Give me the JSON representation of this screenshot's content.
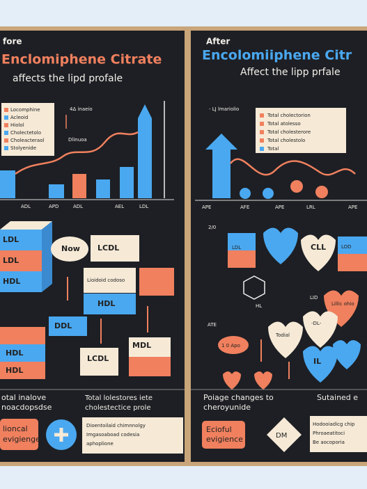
{
  "left": {
    "heading": "fore",
    "title": "Enclomiphene Citrate",
    "subtitle": "affects the lipd profale",
    "legend": [
      "Locomphine",
      "Acleoid",
      "Hiolol",
      "Cholectetolo",
      "Choleacteraol",
      "Stolyenide"
    ],
    "notes": [
      "4Δ inaeio",
      "Dlinuoa"
    ],
    "xlabels": [
      "ADL",
      "APD",
      "ADL",
      "AEL",
      "LDL"
    ],
    "blocks": [
      "LDL",
      "LDL",
      "HDL",
      "Now",
      "LCDL",
      "Lioidoid codoso",
      "HDL",
      "DDL",
      "HDL",
      "HDL",
      "LCDL",
      "MDL"
    ],
    "bottom": [
      "otal inalove",
      "noacdopsdse",
      "Total lolestores iete",
      "cholestectice prole"
    ],
    "evidence": [
      "lioncal",
      "evigienge"
    ],
    "bullets": [
      "Dioentoilaid chimnnolgy",
      "Imgasoaboad codesia",
      "aphoplione"
    ]
  },
  "right": {
    "heading": "After",
    "title": "Encolomiiphene Citr",
    "subtitle": "Affect the lipp prfale",
    "note": "- LJ lmariolio",
    "legend": [
      "Total cholectorion",
      "Total atolesso",
      "Total cholesterore",
      "Total cholestolo",
      "Total"
    ],
    "xlabels": [
      "APE",
      "AFE",
      "APE",
      "LRL",
      "APE"
    ],
    "hearts": [
      "2/0",
      "LDL",
      "CLL",
      "LID",
      "LOD",
      "Lillic ohio",
      "HL",
      "-DL-",
      "ATE",
      "Todial",
      "1 0 Apo",
      "IL"
    ],
    "bottom": [
      "Poiage changes to",
      "cheroyunide",
      "Sutained e"
    ],
    "evidence": [
      "Ecioful",
      "evigience"
    ],
    "diamond": "DM",
    "bullets": [
      "Hodooiadicg chip",
      "Phroaeatitoci",
      "Be aocoporia"
    ]
  }
}
